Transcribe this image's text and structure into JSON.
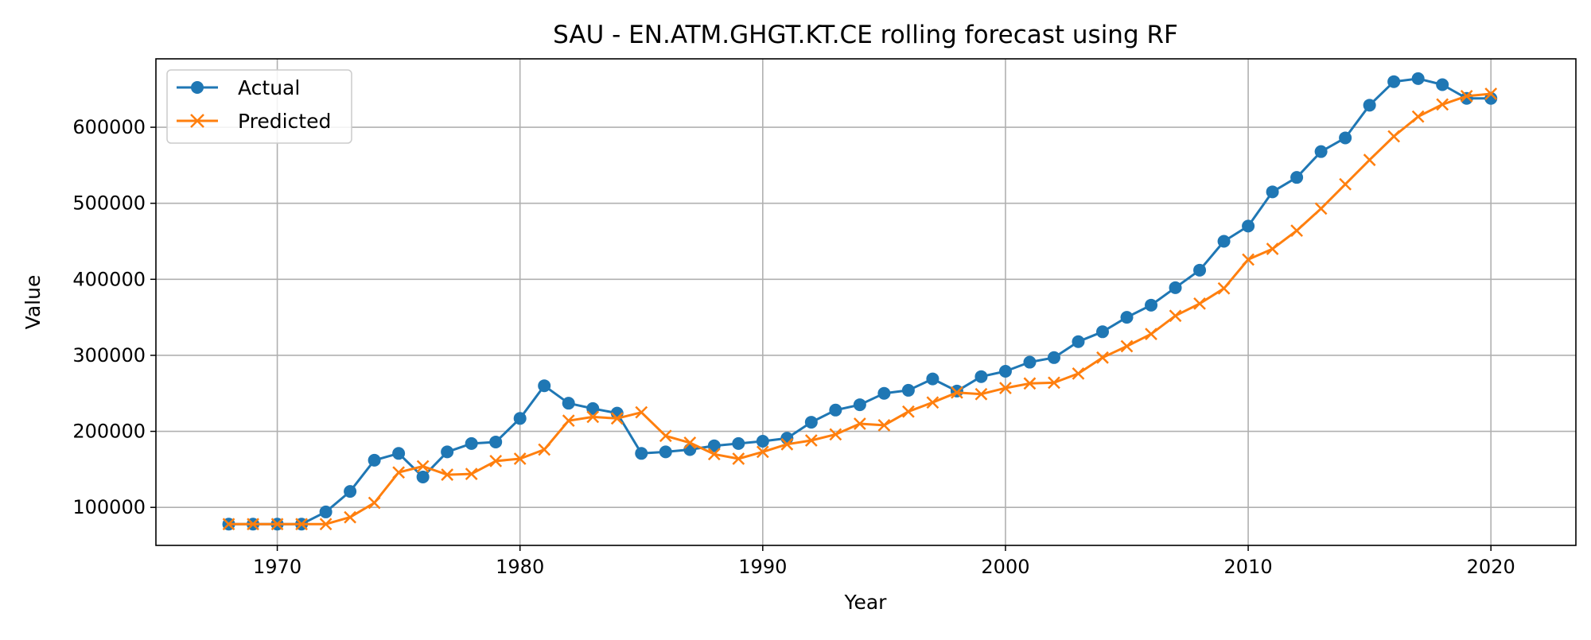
{
  "chart_data": {
    "type": "line",
    "title": "SAU - EN.ATM.GHGT.KT.CE rolling forecast using RF",
    "xlabel": "Year",
    "ylabel": "Value",
    "xlim": [
      1965,
      2023.5
    ],
    "ylim": [
      50000,
      690000
    ],
    "xticks": [
      1970,
      1980,
      1990,
      2000,
      2010,
      2020
    ],
    "yticks": [
      100000,
      200000,
      300000,
      400000,
      500000,
      600000
    ],
    "grid": true,
    "legend_position": "top-left",
    "x": [
      1968,
      1969,
      1970,
      1971,
      1972,
      1973,
      1974,
      1975,
      1976,
      1977,
      1978,
      1979,
      1980,
      1981,
      1982,
      1983,
      1984,
      1985,
      1986,
      1987,
      1988,
      1989,
      1990,
      1991,
      1992,
      1993,
      1994,
      1995,
      1996,
      1997,
      1998,
      1999,
      2000,
      2001,
      2002,
      2003,
      2004,
      2005,
      2006,
      2007,
      2008,
      2009,
      2010,
      2011,
      2012,
      2013,
      2014,
      2015,
      2016,
      2017,
      2018,
      2019,
      2020
    ],
    "series": [
      {
        "name": "Actual",
        "color": "#1f77b4",
        "marker": "circle",
        "values": [
          78000,
          78000,
          78000,
          78000,
          94000,
          121000,
          162000,
          171000,
          140000,
          173000,
          184000,
          186000,
          217000,
          260000,
          237000,
          230000,
          224000,
          171000,
          173000,
          176000,
          181000,
          184000,
          187000,
          191000,
          212000,
          228000,
          235000,
          250000,
          254000,
          269000,
          253000,
          272000,
          279000,
          291000,
          297000,
          318000,
          331000,
          350000,
          366000,
          389000,
          412000,
          450000,
          470000,
          515000,
          534000,
          568000,
          586000,
          629000,
          660000,
          664000,
          656000,
          638000,
          638000
        ]
      },
      {
        "name": "Predicted",
        "color": "#ff7f0e",
        "marker": "x",
        "values": [
          78000,
          78000,
          78000,
          78000,
          78000,
          87000,
          106000,
          146000,
          154000,
          143000,
          144000,
          161000,
          164000,
          176000,
          214000,
          219000,
          217000,
          225000,
          194000,
          185000,
          170000,
          164000,
          173000,
          183000,
          188000,
          196000,
          210000,
          208000,
          226000,
          238000,
          251000,
          249000,
          257000,
          263000,
          264000,
          276000,
          297000,
          312000,
          328000,
          352000,
          368000,
          388000,
          426000,
          440000,
          464000,
          493000,
          525000,
          557000,
          588000,
          614000,
          630000,
          641000,
          644000
        ]
      }
    ]
  }
}
